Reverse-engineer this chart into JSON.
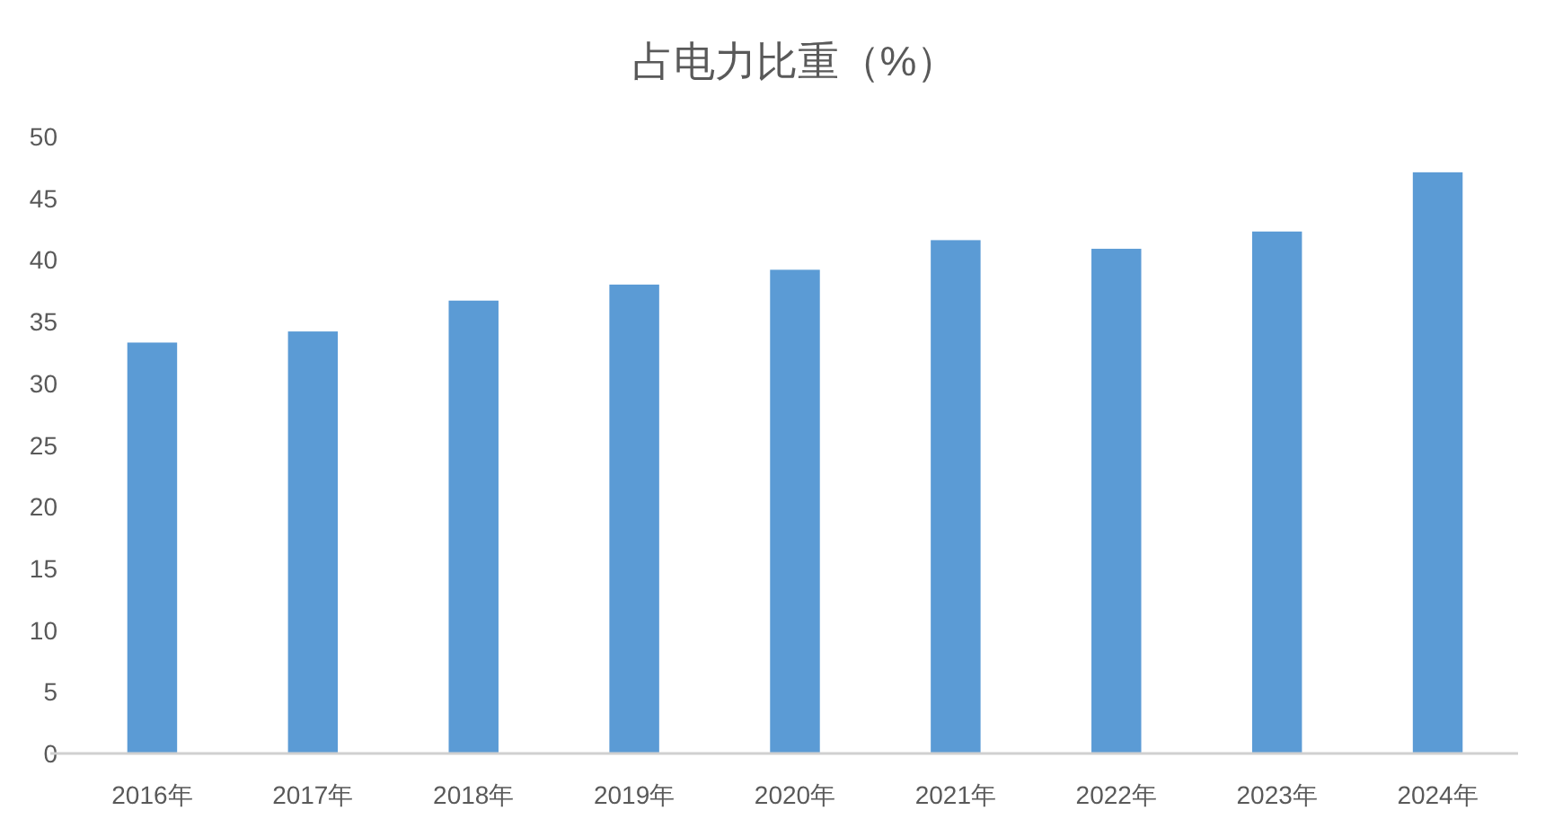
{
  "chart_data": {
    "type": "bar",
    "title": "占电力比重（%）",
    "categories": [
      "2016年",
      "2017年",
      "2018年",
      "2019年",
      "2020年",
      "2021年",
      "2022年",
      "2023年",
      "2024年"
    ],
    "values": [
      33.3,
      34.2,
      36.7,
      38.0,
      39.2,
      41.6,
      40.9,
      42.3,
      47.1
    ],
    "color": "#5b9bd5",
    "ylim": [
      0,
      50
    ],
    "yticks": [
      0,
      5,
      10,
      15,
      20,
      25,
      30,
      35,
      40,
      45,
      50
    ]
  }
}
